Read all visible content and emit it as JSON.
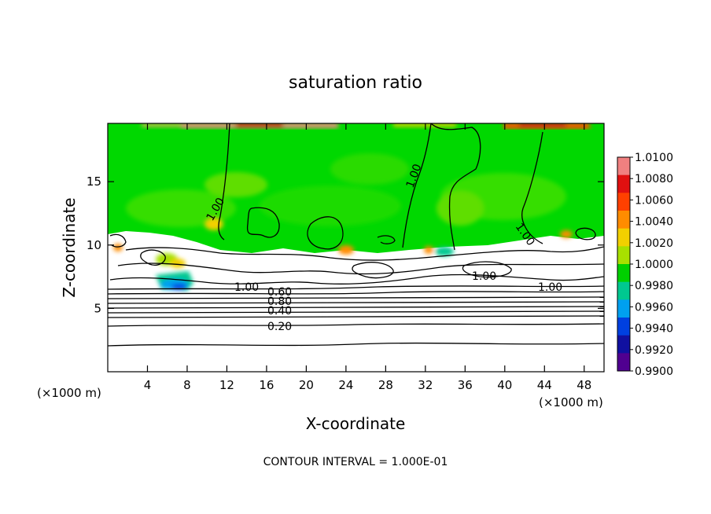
{
  "chart_data": {
    "type": "heatmap",
    "title": "saturation ratio",
    "xlabel": "X-coordinate",
    "ylabel": "Z-coordinate",
    "x_unit_left": "(×1000 m)",
    "x_unit_right": "(×1000 m)",
    "xlim": [
      0,
      50
    ],
    "ylim": [
      0,
      19.6
    ],
    "x_ticks": [
      4,
      8,
      12,
      16,
      20,
      24,
      28,
      32,
      36,
      40,
      44,
      48
    ],
    "x_tick_labels": [
      "4",
      "8",
      "12",
      "16",
      "20",
      "24",
      "28",
      "32",
      "36",
      "40",
      "44",
      "48"
    ],
    "y_ticks": [
      5,
      10,
      15
    ],
    "y_tick_labels": [
      "5",
      "10",
      "15"
    ],
    "colorbar": {
      "min": 0.99,
      "max": 1.01,
      "labels": [
        "1.0100",
        "1.0080",
        "1.0060",
        "1.0040",
        "1.0020",
        "1.0000",
        "0.9980",
        "0.9960",
        "0.9940",
        "0.9920",
        "0.9900"
      ],
      "colors": [
        "#f08080",
        "#e01010",
        "#ff4000",
        "#ff8c00",
        "#f2d000",
        "#a8e000",
        "#00d000",
        "#00c890",
        "#00a0f0",
        "#0040e0",
        "#1010a0",
        "#500090"
      ]
    },
    "contour_labels": [
      "1.00",
      "1.00",
      "1.00",
      "1.00",
      "1.00",
      "1.00",
      "0.60",
      "0.80",
      "0.40",
      "0.20"
    ],
    "contour_interval_text": "CONTOUR INTERVAL = 1.000E-01"
  }
}
